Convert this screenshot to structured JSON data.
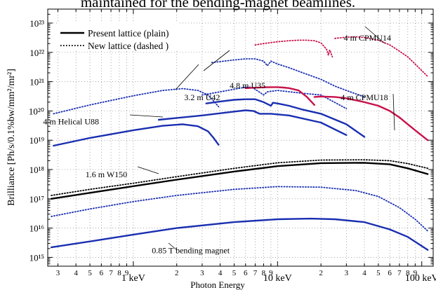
{
  "caption": "maintained for the bending-magnet beamlines.",
  "chart_data": {
    "type": "line",
    "title": "",
    "xlabel": "Photon Energy",
    "ylabel": "Brilliance [Ph/s/0.1%bw/mm²/mr²]",
    "xscale": "log",
    "yscale": "log",
    "xlim": [
      0.255,
      120
    ],
    "ylim": [
      500000000000000.0,
      3e+23
    ],
    "grid": true,
    "x_tick_labels": [
      "3",
      "4",
      "5",
      "6",
      "7",
      "8",
      "9",
      "1 keV",
      "2",
      "3",
      "4",
      "5",
      "6",
      "7",
      "8",
      "9",
      "10 keV",
      "2",
      "3",
      "4",
      "5",
      "6",
      "7",
      "8",
      "9",
      "100 keV"
    ],
    "y_tick_labels": [
      "10¹⁵",
      "10¹⁶",
      "10¹⁷",
      "10¹⁸",
      "10¹⁹",
      "10²⁰",
      "10²¹",
      "10²²",
      "10²³"
    ],
    "legend": {
      "position": "top-left",
      "entries": [
        {
          "label": "Present lattice (plain)",
          "style": "solid"
        },
        {
          "label": "New lattice (dashed )",
          "style": "dotted"
        }
      ]
    },
    "annotations": [
      {
        "text": "4 m CPMU14",
        "x": 42,
        "y": 2.5e+22
      },
      {
        "text": "4.8 m U35",
        "x": 6.2,
        "y": 6e+20
      },
      {
        "text": "3.2 m U42",
        "x": 3.0,
        "y": 2.3e+20
      },
      {
        "text": "4 m CPMU18",
        "x": 40,
        "y": 2.3e+20
      },
      {
        "text": "4 m Helical U88",
        "x": 0.37,
        "y": 3.5e+19
      },
      {
        "text": "1.6 m W150",
        "x": 0.65,
        "y": 5.5e+17
      },
      {
        "text": "0.85 T bending magnet",
        "x": 2.5,
        "y": 1400000000000000.0
      }
    ],
    "series": [
      {
        "style": "solid",
        "color": "#000000",
        "x": [
          0.27,
          0.5,
          1,
          2,
          5,
          10,
          20,
          40,
          60,
          80,
          110
        ],
        "y": [
          1e+17,
          1.6e+17,
          2.7e+17,
          4.5e+17,
          8.5e+17,
          1.3e+18,
          1.65e+18,
          1.7e+18,
          1.5e+18,
          1.1e+18,
          7e+17
        ]
      },
      {
        "style": "dotted",
        "color": "#000000",
        "x": [
          0.27,
          0.5,
          1,
          2,
          5,
          10,
          20,
          40,
          60,
          80,
          110
        ],
        "y": [
          1.3e+17,
          2.1e+17,
          3.4e+17,
          5.7e+17,
          1.1e+18,
          1.7e+18,
          2.1e+18,
          2.15e+18,
          2e+18,
          1.6e+18,
          1.1e+18
        ]
      },
      {
        "style": "solid",
        "color": "#1a2fb0",
        "x": [
          0.27,
          0.5,
          1,
          2,
          5,
          10,
          17,
          25,
          40,
          60,
          80,
          110
        ],
        "y": [
          2200000000000000.0,
          3500000000000000.0,
          6000000000000000.0,
          1e+16,
          1.6e+16,
          2e+16,
          2.1e+16,
          2e+16,
          1.6e+16,
          9000000000000000.0,
          5000000000000000.0,
          1800000000000000.0
        ]
      },
      {
        "style": "dotted",
        "color": "#1a2fb0",
        "x": [
          0.27,
          0.5,
          1,
          2,
          5,
          10,
          20,
          35,
          50,
          70,
          90,
          110
        ],
        "y": [
          2.5e+16,
          4.5e+16,
          8e+16,
          1.3e+17,
          2.1e+17,
          2.6e+17,
          2.5e+17,
          1.9e+17,
          1.2e+17,
          5e+16,
          2e+16,
          8000000000000000.0
        ]
      },
      {
        "style": "solid",
        "color": "#1a2fb0",
        "x": [
          0.28,
          0.5,
          1,
          1.6,
          2.2,
          2.8,
          3.3,
          3.6,
          3.9
        ],
        "y": [
          6.5e+18,
          1.2e+19,
          2.2e+19,
          3.1e+19,
          3.5e+19,
          3e+19,
          2e+19,
          1.2e+19,
          7e+18
        ]
      },
      {
        "style": "dotted",
        "color": "#1a2fb0",
        "x": [
          0.28,
          0.5,
          1,
          1.6,
          2.2,
          2.8,
          3.3,
          3.6,
          3.9
        ],
        "y": [
          8e+19,
          1.6e+20,
          3.3e+20,
          5e+20,
          5.8e+20,
          5e+20,
          3.5e+20,
          2.2e+20,
          1.4e+20
        ]
      },
      {
        "style": "solid",
        "color": "#1a2fb0",
        "x": [
          1.5,
          3,
          5,
          6,
          6.8,
          7.5,
          9,
          12,
          20,
          30
        ],
        "y": [
          5e+19,
          7e+19,
          9.5e+19,
          1.05e+20,
          1e+20,
          8e+19,
          8e+19,
          7e+19,
          4e+19,
          1.5e+19
        ]
      },
      {
        "style": "dotted",
        "color": "#1a2fb0",
        "x": [
          3,
          4,
          5,
          6,
          6.5,
          6.8,
          7.2,
          8,
          8.5,
          10,
          15,
          20,
          30
        ],
        "y": [
          3.5e+20,
          4.5e+20,
          5.5e+20,
          6.5e+20,
          6.5e+20,
          6e+20,
          5e+20,
          3.5e+20,
          4.5e+20,
          5e+20,
          4e+20,
          3.5e+20,
          1.2e+20
        ]
      },
      {
        "style": "solid",
        "color": "#1a2fb0",
        "x": [
          3.2,
          4,
          5,
          6,
          7,
          8,
          9,
          9.3,
          10,
          12,
          15,
          20,
          30,
          40
        ],
        "y": [
          1.8e+20,
          2.1e+20,
          2.4e+20,
          2.5e+20,
          2.5e+20,
          2e+20,
          1.5e+20,
          1.9e+20,
          1.8e+20,
          1.5e+20,
          1.1e+20,
          8e+19,
          3.5e+19,
          1.3e+19
        ]
      },
      {
        "style": "dotted",
        "color": "#1a2fb0",
        "x": [
          3.5,
          5,
          6,
          7,
          8,
          8.5,
          9,
          10,
          12,
          15,
          20,
          25,
          30,
          40
        ],
        "y": [
          4.5e+21,
          5.5e+21,
          6e+21,
          6e+21,
          5e+21,
          3.5e+21,
          5e+21,
          4e+21,
          3e+21,
          2e+21,
          1.2e+21,
          7e+20,
          5e+20,
          3e+20
        ]
      },
      {
        "style": "solid",
        "color": "#c8124a",
        "x": [
          6,
          7,
          8,
          9,
          10,
          11,
          12,
          14,
          16,
          18
        ],
        "y": [
          6e+20,
          6.2e+20,
          6.4e+20,
          6.5e+20,
          6.5e+20,
          6.3e+20,
          6e+20,
          5e+20,
          3e+20,
          1.6e+20
        ]
      },
      {
        "style": "dotted",
        "color": "#c8124a",
        "x": [
          7,
          8,
          10,
          12,
          14,
          16,
          18,
          20,
          21,
          22,
          22.5,
          23,
          24
        ],
        "y": [
          1.8e+22,
          2e+22,
          2.3e+22,
          2.5e+22,
          2.6e+22,
          2.6e+22,
          2.5e+22,
          2.1e+22,
          1.6e+22,
          1.2e+22,
          8e+21,
          1.2e+22,
          7e+21
        ]
      },
      {
        "style": "solid",
        "color": "#c8124a",
        "x": [
          18,
          20,
          25,
          30,
          40,
          50,
          60,
          70,
          80,
          90,
          110
        ],
        "y": [
          3e+20,
          3.1e+20,
          3e+20,
          2.7e+20,
          2e+20,
          1.5e+20,
          1e+20,
          6e+19,
          3.5e+19,
          2.2e+19,
          1e+19
        ]
      },
      {
        "style": "dotted",
        "color": "#c8124a",
        "x": [
          25,
          30,
          35,
          40,
          50,
          60,
          70,
          80,
          90,
          110
        ],
        "y": [
          3e+22,
          3.3e+22,
          3.4e+22,
          3.2e+22,
          2.6e+22,
          1.8e+22,
          1.1e+22,
          7e+21,
          4e+21,
          1.5e+21
        ]
      }
    ]
  }
}
